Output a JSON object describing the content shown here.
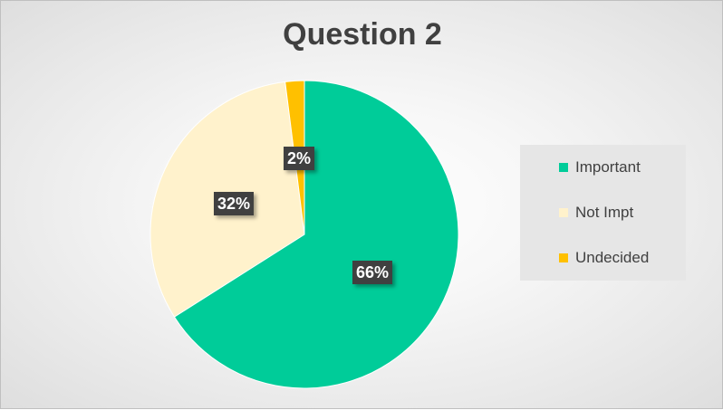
{
  "chart_data": {
    "type": "pie",
    "title": "Question 2",
    "slices": [
      {
        "name": "Important",
        "value": 66,
        "label": "66%",
        "color": "#00cc99"
      },
      {
        "name": "Not Impt",
        "value": 32,
        "label": "32%",
        "color": "#fff2cc"
      },
      {
        "name": "Undecided",
        "value": 2,
        "label": "2%",
        "color": "#ffc000"
      }
    ],
    "legend_position": "right",
    "start_angle_deg": 0,
    "direction": "clockwise"
  }
}
